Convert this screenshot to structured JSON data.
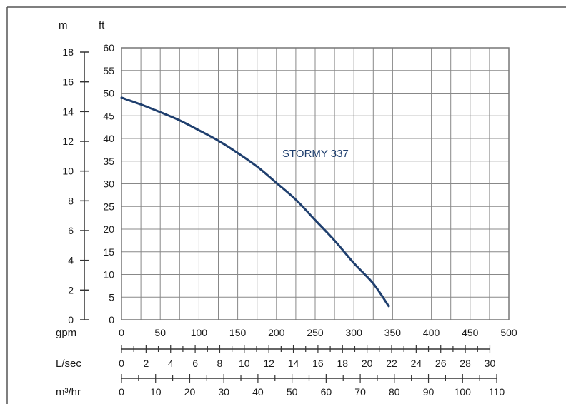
{
  "chart_data": {
    "type": "line",
    "series": [
      {
        "name": "STORMY 337",
        "color": "#1f3f6e",
        "x_gpm": [
          0,
          25,
          50,
          75,
          100,
          125,
          150,
          175,
          200,
          225,
          250,
          275,
          300,
          325,
          345
        ],
        "y_ft": [
          49,
          47.5,
          45.8,
          44,
          41.8,
          39.5,
          36.8,
          33.8,
          30.2,
          26.5,
          22,
          17.5,
          12.5,
          8,
          3
        ]
      }
    ],
    "axes": {
      "m": {
        "label": "m",
        "ticks": [
          "0",
          "2",
          "4",
          "6",
          "8",
          "10",
          "12",
          "14",
          "16",
          "18"
        ],
        "min": 0,
        "max": 18
      },
      "ft": {
        "label": "ft",
        "ticks": [
          "0",
          "5",
          "10",
          "15",
          "20",
          "25",
          "30",
          "35",
          "40",
          "45",
          "50",
          "55",
          "60"
        ],
        "min": 0,
        "max": 60
      },
      "gpm": {
        "label": "gpm",
        "ticks": [
          "0",
          "50",
          "100",
          "150",
          "200",
          "250",
          "300",
          "350",
          "400",
          "450",
          "500"
        ],
        "min": 0,
        "max": 500
      },
      "lsec": {
        "label": "L/sec",
        "ticks": [
          "0",
          "2",
          "4",
          "6",
          "8",
          "10",
          "12",
          "14",
          "16",
          "18",
          "20",
          "22",
          "24",
          "26",
          "28",
          "30"
        ],
        "min": 0,
        "max": 30
      },
      "m3hr": {
        "label": "m³/hr",
        "ticks": [
          "0",
          "10",
          "20",
          "30",
          "40",
          "50",
          "60",
          "70",
          "80",
          "90",
          "100",
          "110"
        ],
        "min": 0,
        "max": 110
      }
    },
    "grid": true,
    "series_label_text": "STORMY 337"
  }
}
